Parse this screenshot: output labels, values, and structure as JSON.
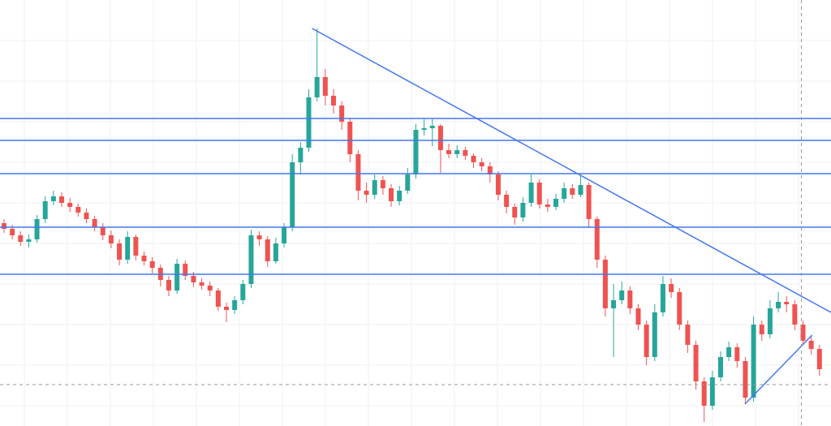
{
  "chart_data": {
    "type": "candlestick",
    "up_color": "#26a69a",
    "down_color": "#ef5350",
    "line_color": "#4476f0",
    "xlim": [
      -0.49,
      100.4
    ],
    "ylim": [
      0,
      525
    ],
    "yticks": [
      25,
      75,
      125,
      175,
      225,
      275,
      325,
      375,
      425,
      475
    ],
    "grid": true,
    "open": [
      250,
      243,
      235,
      227,
      230,
      255,
      277,
      283,
      275,
      270,
      263,
      255,
      245,
      235,
      225,
      205,
      233,
      210,
      203,
      195,
      180,
      167,
      200,
      185,
      177,
      173,
      167,
      147,
      143,
      155,
      175,
      235,
      230,
      203,
      225,
      245,
      325,
      343,
      405,
      430,
      407,
      395,
      375,
      335,
      290,
      285,
      303,
      293,
      277,
      290,
      310,
      365,
      367,
      370,
      340,
      335,
      340,
      333,
      325,
      320,
      310,
      285,
      270,
      257,
      275,
      300,
      273,
      270,
      280,
      293,
      285,
      297,
      255,
      205,
      145,
      155,
      167,
      145,
      125,
      85,
      140,
      175,
      165,
      125,
      100,
      55,
      25,
      60,
      85,
      97,
      80,
      35,
      125,
      113,
      145,
      153,
      150,
      125,
      105,
      95
    ],
    "high": [
      255,
      248,
      240,
      236,
      260,
      283,
      290,
      288,
      281,
      274,
      268,
      259,
      250,
      241,
      230,
      240,
      236,
      215,
      208,
      199,
      185,
      206,
      204,
      190,
      182,
      178,
      170,
      152,
      160,
      180,
      242,
      240,
      234,
      232,
      250,
      335,
      350,
      415,
      490,
      440,
      415,
      400,
      380,
      340,
      300,
      310,
      308,
      298,
      296,
      318,
      372,
      378,
      378,
      372,
      348,
      346,
      344,
      336,
      330,
      325,
      314,
      290,
      274,
      282,
      310,
      304,
      280,
      286,
      300,
      298,
      308,
      300,
      258,
      210,
      175,
      178,
      172,
      150,
      130,
      150,
      185,
      182,
      170,
      130,
      105,
      60,
      68,
      92,
      104,
      102,
      85,
      135,
      130,
      155,
      165,
      160,
      155,
      130,
      110,
      100
    ],
    "low": [
      238,
      230,
      222,
      220,
      226,
      250,
      272,
      270,
      264,
      258,
      250,
      240,
      229,
      219,
      198,
      200,
      204,
      198,
      188,
      172,
      160,
      163,
      180,
      171,
      168,
      160,
      142,
      128,
      138,
      150,
      170,
      222,
      196,
      200,
      220,
      240,
      310,
      338,
      400,
      395,
      385,
      365,
      325,
      278,
      275,
      280,
      285,
      270,
      272,
      286,
      305,
      358,
      345,
      312,
      330,
      330,
      328,
      318,
      314,
      300,
      278,
      262,
      248,
      252,
      270,
      268,
      264,
      266,
      275,
      280,
      282,
      245,
      195,
      135,
      85,
      150,
      138,
      118,
      75,
      80,
      135,
      158,
      118,
      90,
      45,
      5,
      20,
      55,
      80,
      72,
      28,
      30,
      105,
      108,
      140,
      140,
      118,
      100,
      88,
      62
    ],
    "close": [
      243,
      235,
      227,
      230,
      255,
      277,
      283,
      275,
      270,
      263,
      255,
      245,
      235,
      225,
      205,
      233,
      210,
      203,
      195,
      180,
      167,
      200,
      185,
      177,
      173,
      167,
      147,
      143,
      155,
      175,
      235,
      230,
      203,
      225,
      245,
      325,
      343,
      405,
      430,
      407,
      395,
      375,
      335,
      290,
      285,
      303,
      293,
      277,
      290,
      310,
      365,
      367,
      370,
      340,
      335,
      340,
      333,
      325,
      320,
      310,
      285,
      270,
      257,
      275,
      300,
      273,
      270,
      280,
      293,
      285,
      297,
      255,
      205,
      145,
      155,
      167,
      145,
      125,
      85,
      140,
      175,
      165,
      125,
      100,
      55,
      25,
      60,
      85,
      97,
      80,
      35,
      125,
      113,
      145,
      153,
      150,
      125,
      105,
      95,
      70
    ],
    "hlines": [
      379,
      352,
      311,
      245,
      187
    ],
    "trendlines": [
      {
        "x": [
          37.4,
          100.4
        ],
        "y": [
          490,
          140
        ]
      },
      {
        "x": [
          89.95,
          98.1
        ],
        "y": [
          27,
          112
        ]
      }
    ],
    "crosshair": {
      "x": 96.8,
      "y": 51
    }
  }
}
